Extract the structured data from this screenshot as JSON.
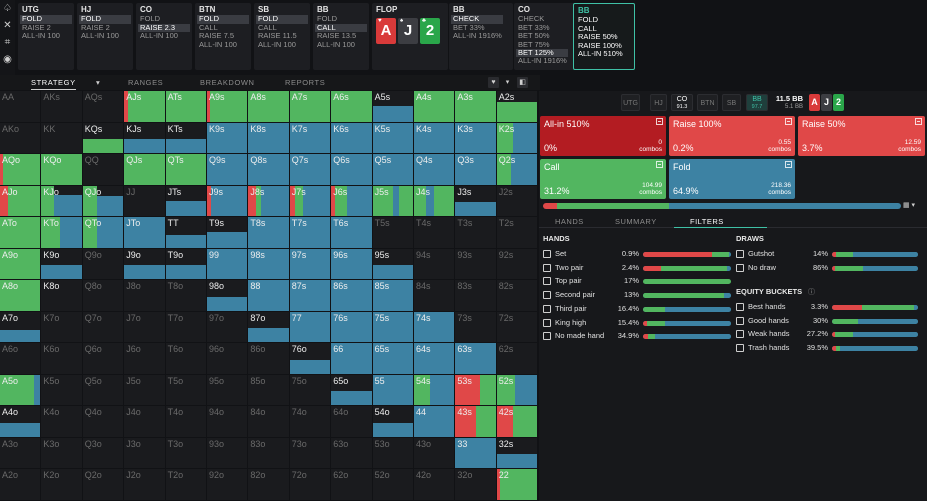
{
  "colors": {
    "raise_big": "#b31c22",
    "raise": "#e04848",
    "call": "#52b660",
    "fold": "#3d82a3",
    "empty": "#1a1b1e",
    "accent": "#3fc1a6"
  },
  "icons": [
    "spade-logo-icon",
    "close-icon",
    "scan-icon",
    "gamepad-icon"
  ],
  "cards": [
    {
      "pos": "UTG",
      "actions": [
        "FOLD",
        "RAISE 2",
        "ALL-IN 100"
      ],
      "selected": 0
    },
    {
      "pos": "HJ",
      "actions": [
        "FOLD",
        "RAISE 2",
        "ALL-IN 100"
      ],
      "selected": 0
    },
    {
      "pos": "CO",
      "actions": [
        "FOLD",
        "RAISE 2.3",
        "ALL-IN 100"
      ],
      "selected": 1
    },
    {
      "pos": "BTN",
      "actions": [
        "FOLD",
        "CALL",
        "RAISE 7.5",
        "ALL-IN 100"
      ],
      "selected": 0
    },
    {
      "pos": "SB",
      "actions": [
        "FOLD",
        "CALL",
        "RAISE 11.5",
        "ALL-IN 100"
      ],
      "selected": 0
    },
    {
      "pos": "BB",
      "actions": [
        "FOLD",
        "CALL",
        "RAISE 13.5",
        "ALL-IN 100"
      ],
      "selected": 1
    },
    {
      "pos": "FLOP",
      "flop": true
    },
    {
      "pos": "BB",
      "actions": [
        "CHECK",
        "BET 33%",
        "ALL-IN 1916%"
      ],
      "selected": 0
    },
    {
      "pos": "CO",
      "actions": [
        "CHECK",
        "BET 33%",
        "BET 50%",
        "BET 75%",
        "BET 125%",
        "ALL-IN 1916%"
      ],
      "selected": 4
    },
    {
      "pos": "BB",
      "actions": [
        "FOLD",
        "CALL",
        "RAISE 50%",
        "RAISE 100%",
        "ALL-IN 510%"
      ],
      "active": true
    }
  ],
  "flop": [
    {
      "rank": "A",
      "suit": "♥",
      "color": "#d93a3a"
    },
    {
      "rank": "J",
      "suit": "♠",
      "color": "#3c3d42"
    },
    {
      "rank": "2",
      "suit": "♣",
      "color": "#2aa64a"
    }
  ],
  "tabs": [
    "STRATEGY",
    "RANGES",
    "BREAKDOWN",
    "REPORTS"
  ],
  "tab_caret": "▾",
  "view_controls": [
    "♥",
    "▾",
    "◧"
  ],
  "grid": [
    [
      "AA",
      "AKs",
      "AQs",
      "AJs",
      "ATs",
      "A9s",
      "A8s",
      "A7s",
      "A6s",
      "A5s",
      "A4s",
      "A3s",
      "A2s"
    ],
    [
      "AKo",
      "KK",
      "KQs",
      "KJs",
      "KTs",
      "K9s",
      "K8s",
      "K7s",
      "K6s",
      "K5s",
      "K4s",
      "K3s",
      "K2s"
    ],
    [
      "AQo",
      "KQo",
      "QQ",
      "QJs",
      "QTs",
      "Q9s",
      "Q8s",
      "Q7s",
      "Q6s",
      "Q5s",
      "Q4s",
      "Q3s",
      "Q2s"
    ],
    [
      "AJo",
      "KJo",
      "QJo",
      "JJ",
      "JTs",
      "J9s",
      "J8s",
      "J7s",
      "J6s",
      "J5s",
      "J4s",
      "J3s",
      "J2s"
    ],
    [
      "ATo",
      "KTo",
      "QTo",
      "JTo",
      "TT",
      "T9s",
      "T8s",
      "T7s",
      "T6s",
      "T5s",
      "T4s",
      "T3s",
      "T2s"
    ],
    [
      "A9o",
      "K9o",
      "Q9o",
      "J9o",
      "T9o",
      "99",
      "98s",
      "97s",
      "96s",
      "95s",
      "94s",
      "93s",
      "92s"
    ],
    [
      "A8o",
      "K8o",
      "Q8o",
      "J8o",
      "T8o",
      "98o",
      "88",
      "87s",
      "86s",
      "85s",
      "84s",
      "83s",
      "82s"
    ],
    [
      "A7o",
      "K7o",
      "Q7o",
      "J7o",
      "T7o",
      "97o",
      "87o",
      "77",
      "76s",
      "75s",
      "74s",
      "73s",
      "72s"
    ],
    [
      "A6o",
      "K6o",
      "Q6o",
      "J6o",
      "T6o",
      "96o",
      "86o",
      "76o",
      "66",
      "65s",
      "64s",
      "63s",
      "62s"
    ],
    [
      "A5o",
      "K5o",
      "Q5o",
      "J5o",
      "T5o",
      "95o",
      "85o",
      "75o",
      "65o",
      "55",
      "54s",
      "53s",
      "52s"
    ],
    [
      "A4o",
      "K4o",
      "Q4o",
      "J4o",
      "T4o",
      "94o",
      "84o",
      "74o",
      "64o",
      "54o",
      "44",
      "43s",
      "42s"
    ],
    [
      "A3o",
      "K3o",
      "Q3o",
      "J3o",
      "T3o",
      "93o",
      "83o",
      "73o",
      "63o",
      "53o",
      "43o",
      "33",
      "32s"
    ],
    [
      "A2o",
      "K2o",
      "Q2o",
      "J2o",
      "T2o",
      "92o",
      "82o",
      "72o",
      "62o",
      "52o",
      "42o",
      "32o",
      "22"
    ]
  ],
  "right": {
    "positions": [
      {
        "label": "UTG"
      },
      {
        "label": "HJ"
      },
      {
        "label": "CO",
        "stack": "91.3",
        "on": true
      },
      {
        "label": "BTN"
      },
      {
        "label": "SB"
      },
      {
        "label": "BB",
        "stack": "97.7",
        "on": true
      }
    ],
    "pot": "11.5 BB",
    "pot_sub": "5.1 BB",
    "board": [
      {
        "rank": "A",
        "color": "#d93a3a"
      },
      {
        "rank": "J",
        "color": "#3c3d42"
      },
      {
        "rank": "2",
        "color": "#2aa64a"
      }
    ],
    "actions": [
      {
        "name": "All-in 510%",
        "pct": "0%",
        "combos": "0",
        "unit": "combos",
        "color": "#b31c22"
      },
      {
        "name": "Raise 100%",
        "pct": "0.2%",
        "combos": "0.55",
        "unit": "combos",
        "color": "#e04848"
      },
      {
        "name": "Raise 50%",
        "pct": "3.7%",
        "combos": "12.59",
        "unit": "combos",
        "color": "#e04848"
      },
      {
        "name": "Call",
        "pct": "31.2%",
        "combos": "104.99",
        "unit": "combos",
        "color": "#52b660"
      },
      {
        "name": "Fold",
        "pct": "64.9%",
        "combos": "218.36",
        "unit": "combos",
        "color": "#3d82a3"
      }
    ],
    "strip_menu": "▦ ▾",
    "subtabs": [
      "HANDS",
      "SUMMARY",
      "FILTERS"
    ],
    "hands_title": "HANDS",
    "hands": [
      {
        "name": "Set",
        "pct": "0.9%",
        "r": 0.78,
        "g": 0.2,
        "b": 0.02
      },
      {
        "name": "Two pair",
        "pct": "2.4%",
        "r": 0.2,
        "g": 0.75,
        "b": 0.05
      },
      {
        "name": "Top pair",
        "pct": "17%",
        "r": 0.0,
        "g": 1.0,
        "b": 0.0
      },
      {
        "name": "Second pair",
        "pct": "13%",
        "r": 0.0,
        "g": 0.92,
        "b": 0.08
      },
      {
        "name": "Third pair",
        "pct": "16.4%",
        "r": 0.0,
        "g": 0.25,
        "b": 0.75
      },
      {
        "name": "King high",
        "pct": "15.4%",
        "r": 0.05,
        "g": 0.2,
        "b": 0.75
      },
      {
        "name": "No made hand",
        "pct": "34.9%",
        "r": 0.06,
        "g": 0.08,
        "b": 0.86
      }
    ],
    "draws_title": "DRAWS",
    "draws": [
      {
        "name": "Gutshot",
        "pct": "14%",
        "r": 0.05,
        "g": 0.2,
        "b": 0.75
      },
      {
        "name": "No draw",
        "pct": "86%",
        "r": 0.04,
        "g": 0.32,
        "b": 0.64
      }
    ],
    "equity_title": "EQUITY BUCKETS",
    "equity_info": "ⓘ",
    "equity": [
      {
        "name": "Best hands",
        "pct": "3.3%",
        "r": 0.35,
        "g": 0.6,
        "b": 0.05
      },
      {
        "name": "Good hands",
        "pct": "30%",
        "r": 0.0,
        "g": 0.3,
        "b": 0.7
      },
      {
        "name": "Weak hands",
        "pct": "27.2%",
        "r": 0.04,
        "g": 0.2,
        "b": 0.76
      },
      {
        "name": "Trash hands",
        "pct": "39.5%",
        "r": 0.05,
        "g": 0.04,
        "b": 0.91
      }
    ]
  }
}
